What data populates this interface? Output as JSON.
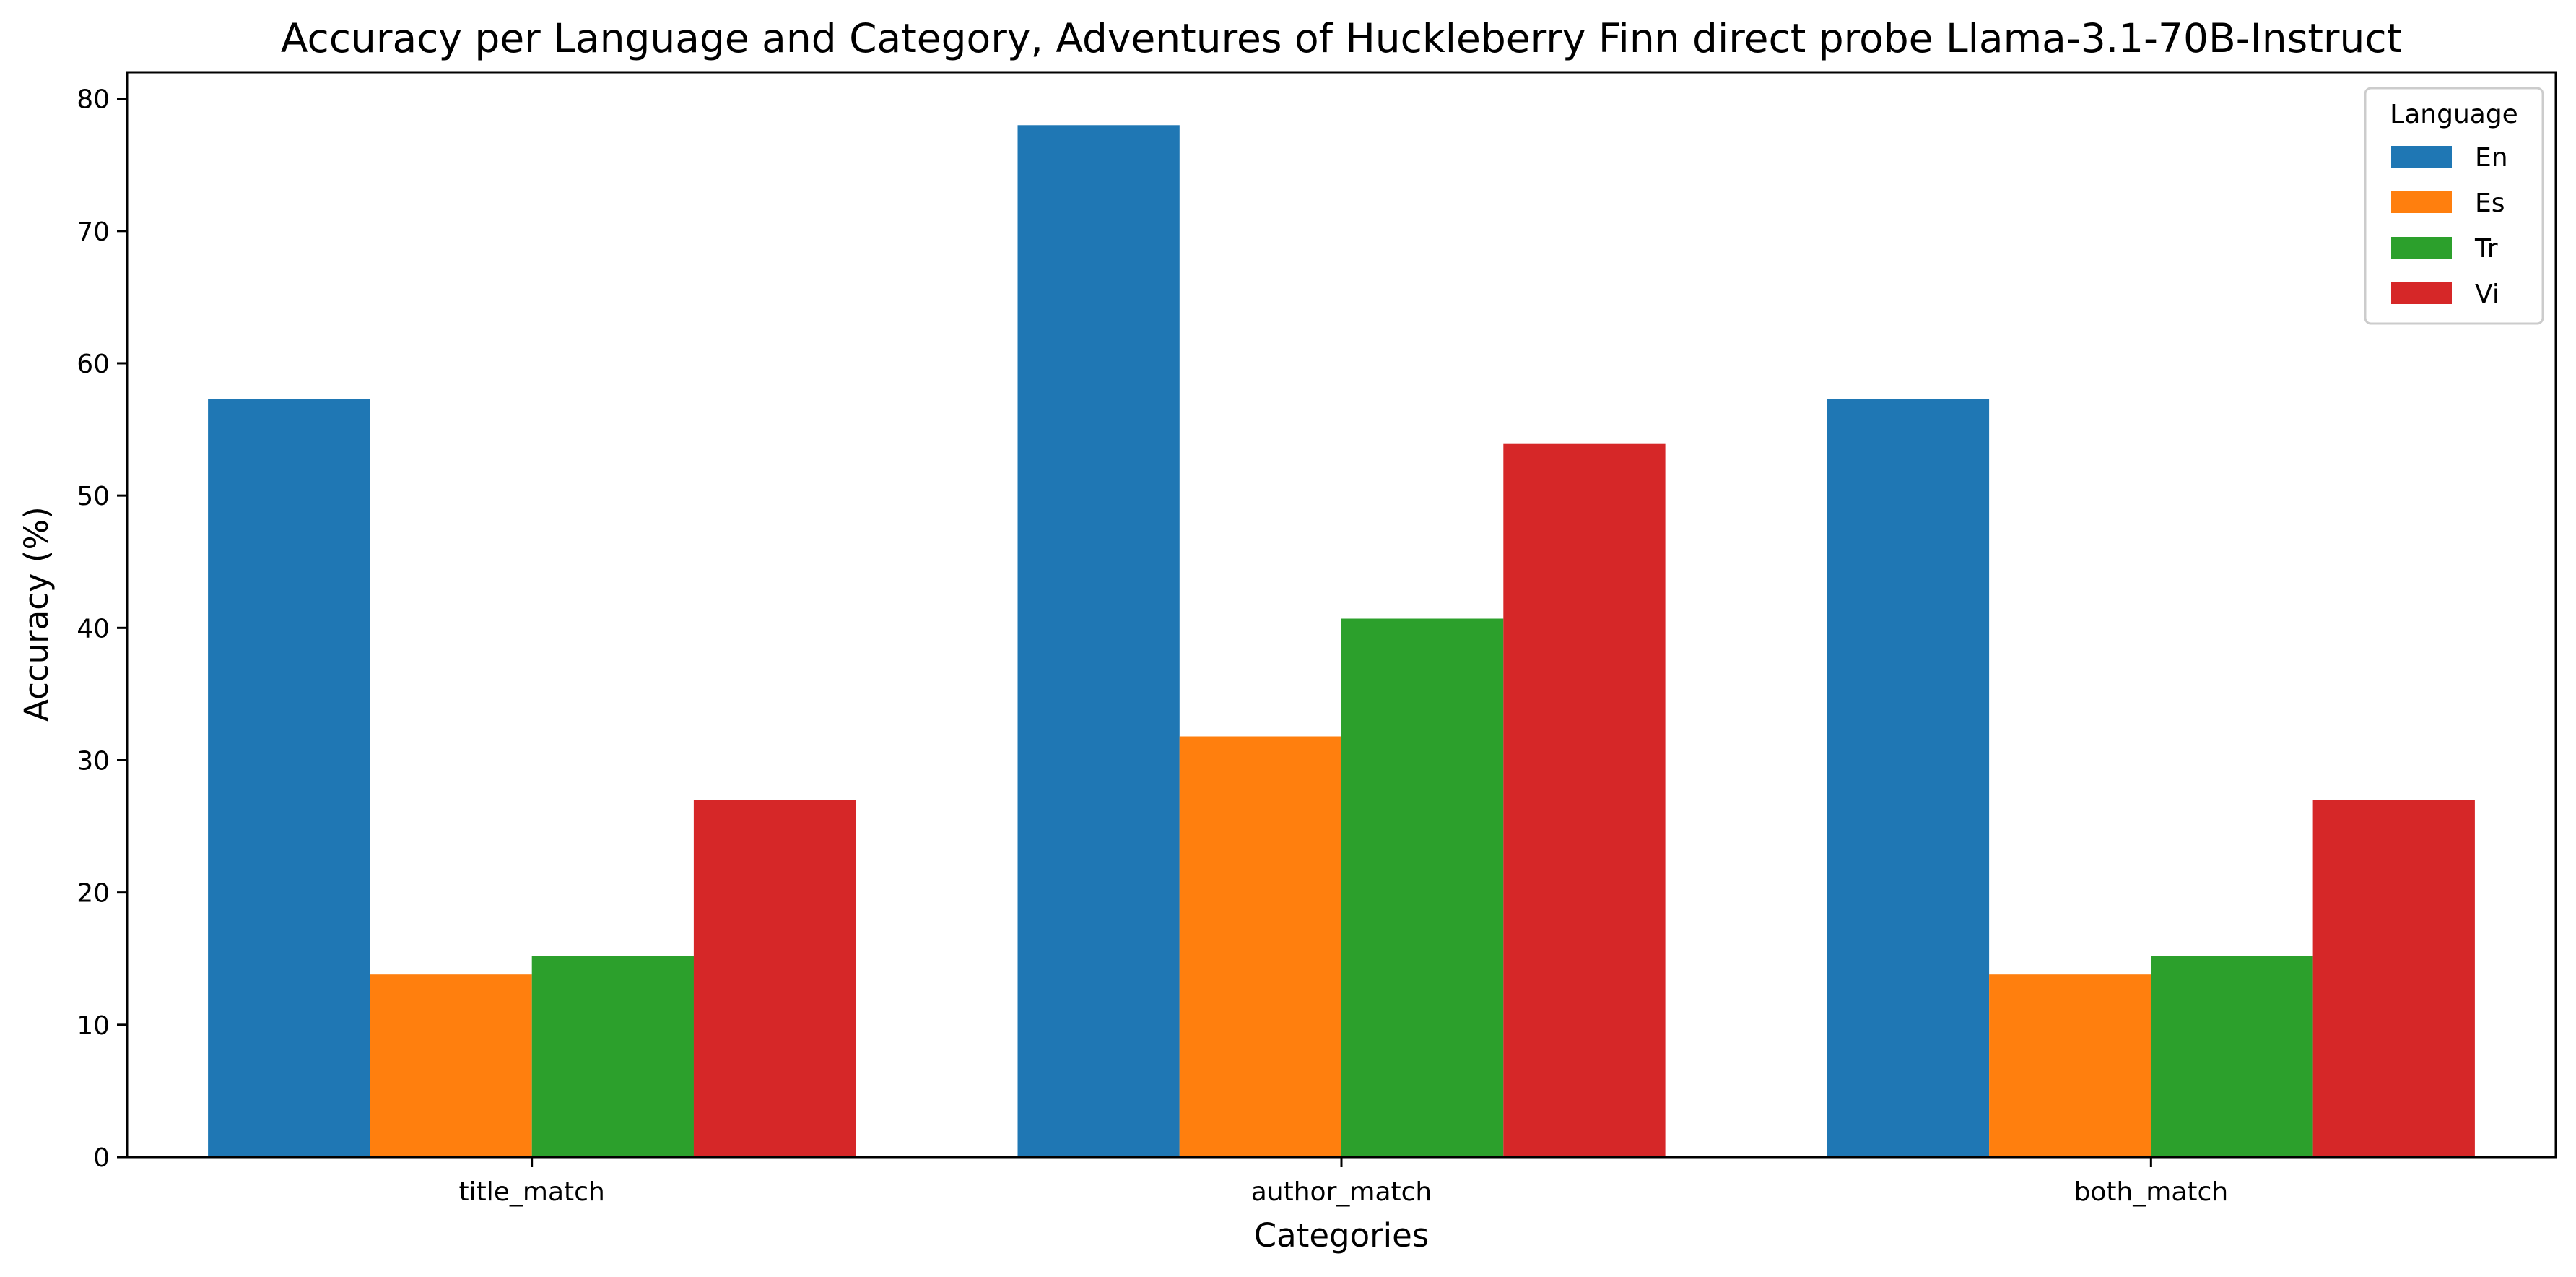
{
  "chart_data": {
    "type": "bar",
    "title": "Accuracy per Language and Category, Adventures of Huckleberry Finn direct probe Llama-3.1-70B-Instruct",
    "xlabel": "Categories",
    "ylabel": "Accuracy (%)",
    "categories": [
      "title_match",
      "author_match",
      "both_match"
    ],
    "series": [
      {
        "name": "En",
        "color": "#1f77b4",
        "values": [
          57.3,
          78.0,
          57.3
        ]
      },
      {
        "name": "Es",
        "color": "#ff7f0e",
        "values": [
          13.8,
          31.8,
          13.8
        ]
      },
      {
        "name": "Tr",
        "color": "#2ca02c",
        "values": [
          15.2,
          40.7,
          15.2
        ]
      },
      {
        "name": "Vi",
        "color": "#d62728",
        "values": [
          27.0,
          53.9,
          27.0
        ]
      }
    ],
    "ylim": [
      0,
      82
    ],
    "yticks": [
      0,
      10,
      20,
      30,
      40,
      50,
      60,
      70,
      80
    ],
    "legend": {
      "title": "Language",
      "placement": "top-right"
    },
    "grid": false
  }
}
